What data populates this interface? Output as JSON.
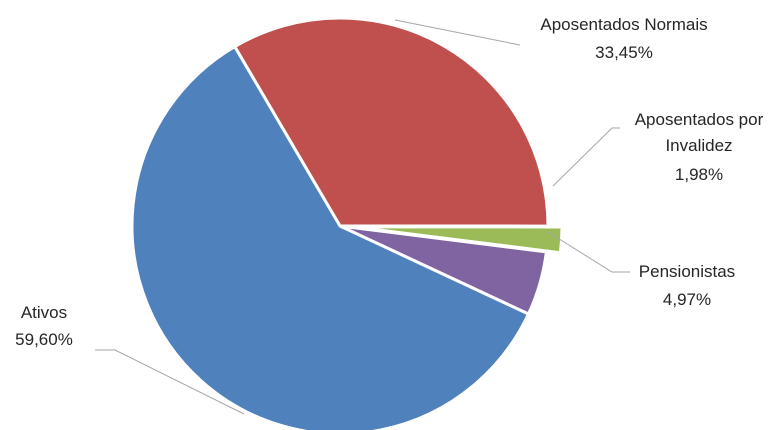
{
  "chart_data": {
    "type": "pie",
    "title": "",
    "slices": [
      {
        "name": "Ativos",
        "percent_label": "59,60%",
        "value": 59.6,
        "color": "#4f81bd"
      },
      {
        "name": "Aposentados Normais",
        "percent_label": "33,45%",
        "value": 33.45,
        "color": "#c0504d"
      },
      {
        "name": "Aposentados por Invalidez",
        "name_lines": [
          "Aposentados por",
          "Invalidez"
        ],
        "percent_label": "1,98%",
        "value": 1.98,
        "color": "#9bbb59"
      },
      {
        "name": "Pensionistas",
        "percent_label": "4,97%",
        "value": 4.97,
        "color": "#8064a2"
      }
    ]
  }
}
